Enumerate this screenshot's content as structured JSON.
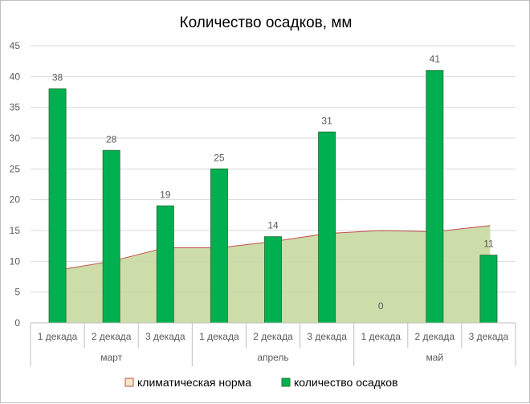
{
  "chart_data": {
    "type": "bar",
    "title": "Количество  осадков,  мм",
    "xlabel": "",
    "ylabel": "",
    "ylim": [
      0,
      45
    ],
    "yticks": [
      "0",
      "5",
      "10",
      "15",
      "20",
      "25",
      "30",
      "35",
      "40",
      "45"
    ],
    "grid": true,
    "legend_position": "bottom",
    "groups": [
      {
        "label": "март",
        "categories": [
          "1 декада",
          "2 декада",
          "3 декада"
        ]
      },
      {
        "label": "апрель",
        "categories": [
          "1 декада",
          "2 декада",
          "3 декада"
        ]
      },
      {
        "label": "май",
        "categories": [
          "1 декада",
          "2 декада",
          "3 декада"
        ]
      }
    ],
    "categories": [
      "1 декада",
      "2 декада",
      "3 декада",
      "1 декада",
      "2 декада",
      "3 декада",
      "1 декада",
      "2 декада",
      "3 декада"
    ],
    "series": [
      {
        "name": "климатическая норма",
        "type": "area",
        "color": "#c4d79b",
        "line_color": "#c0504d",
        "values": [
          8.5,
          10,
          12.2,
          12.2,
          13.2,
          14.5,
          15,
          14.8,
          15.8
        ]
      },
      {
        "name": "количество осадков",
        "type": "bar",
        "color": "#00b050",
        "values": [
          38,
          28,
          19,
          25,
          14,
          31,
          0,
          41,
          11
        ],
        "data_labels": [
          "38",
          "28",
          "19",
          "25",
          "14",
          "31",
          "0",
          "41",
          "11"
        ]
      }
    ]
  }
}
